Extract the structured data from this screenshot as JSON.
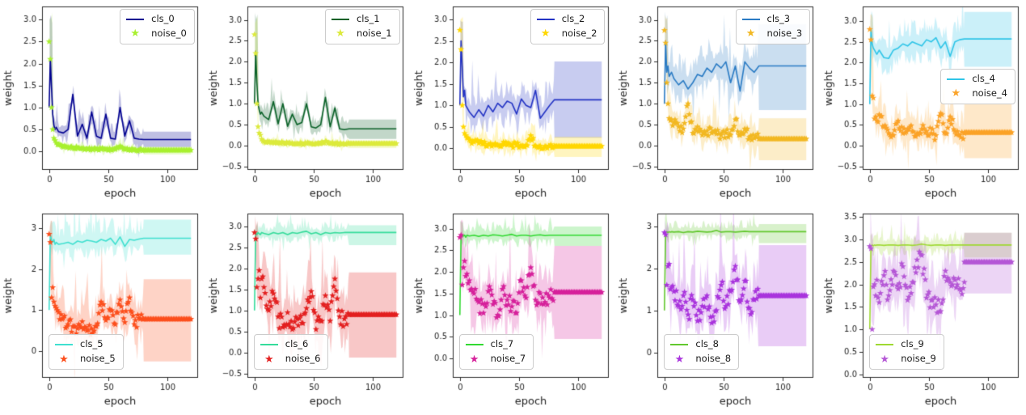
{
  "figure": {
    "background": "#ffffff",
    "grid": {
      "rows": 2,
      "cols": 5
    }
  },
  "chart_data": {
    "type": "line",
    "xlabel": "epoch",
    "ylabel": "weight",
    "xticks": [
      0,
      50,
      100
    ],
    "xlim": [
      -6,
      126
    ],
    "x_end": 120,
    "flat_from": 80,
    "grid_on": false,
    "x_anchors": [
      0,
      1,
      2,
      3,
      4,
      5,
      6,
      8,
      12,
      16,
      20,
      24,
      28,
      32,
      36,
      40,
      44,
      48,
      52,
      56,
      60,
      64,
      68,
      72,
      76,
      80
    ],
    "subplots": [
      {
        "cls_label": "cls_0",
        "noise_label": "noise_0",
        "cls_color": "#000090",
        "noise_color": "#a8f02f",
        "legend_loc": "upper-right",
        "seed": 1,
        "ylim": [
          -0.42,
          3.3
        ],
        "yticks": [
          0,
          0.5,
          1,
          1.5,
          2,
          2.5,
          3
        ],
        "ytick_decimals": 1,
        "cls_y": [
          1.0,
          2.1,
          1.45,
          0.85,
          0.6,
          0.5,
          0.55,
          0.45,
          0.42,
          0.5,
          1.3,
          0.35,
          0.62,
          0.3,
          0.9,
          0.35,
          0.3,
          0.85,
          0.3,
          0.28,
          1.0,
          0.35,
          0.7,
          0.3,
          0.28,
          0.27
        ],
        "cls_settle": 0.27,
        "noise_y": [
          2.5,
          2.1,
          1.0,
          0.5,
          0.3,
          0.25,
          0.2,
          0.15,
          0.1,
          0.1,
          0.08,
          0.08,
          0.07,
          0.06,
          0.06,
          0.05,
          0.05,
          0.05,
          0.04,
          0.05,
          0.12,
          0.05,
          0.04,
          0.04,
          0.03,
          0.03
        ],
        "noise_settle": 0.03,
        "cls_band": {
          "amp": 0.28,
          "flat": [
            0.1,
            0.45
          ]
        },
        "noise_band": {
          "amp": 0.12,
          "flat": [
            -0.07,
            0.1
          ]
        }
      },
      {
        "cls_label": "cls_1",
        "noise_label": "noise_1",
        "cls_color": "#0a6128",
        "noise_color": "#dcea3c",
        "legend_loc": "upper-right",
        "seed": 2,
        "ylim": [
          -0.58,
          3.32
        ],
        "yticks": [
          -0.5,
          0,
          0.5,
          1,
          1.5,
          2,
          2.5,
          3
        ],
        "ytick_decimals": 1,
        "cls_y": [
          1.0,
          2.25,
          1.5,
          1.0,
          0.85,
          0.75,
          0.8,
          0.7,
          0.62,
          1.05,
          0.52,
          1.0,
          0.46,
          0.75,
          0.5,
          0.55,
          1.0,
          0.45,
          0.42,
          0.5,
          1.15,
          0.45,
          0.9,
          0.4,
          0.38,
          0.4
        ],
        "cls_settle": 0.4,
        "noise_y": [
          2.65,
          2.2,
          1.0,
          0.45,
          0.3,
          0.25,
          0.15,
          0.1,
          0.08,
          0.08,
          0.07,
          0.07,
          0.06,
          0.06,
          0.05,
          0.05,
          0.05,
          0.05,
          0.05,
          0.05,
          0.1,
          0.05,
          0.05,
          0.04,
          0.04,
          0.05
        ],
        "noise_settle": 0.05,
        "cls_band": {
          "amp": 0.3,
          "flat": [
            0.16,
            0.62
          ]
        },
        "noise_band": {
          "amp": 0.12,
          "flat": [
            -0.06,
            0.12
          ]
        }
      },
      {
        "cls_label": "cls_2",
        "noise_label": "noise_2",
        "cls_color": "#2333c4",
        "noise_color": "#ffd700",
        "legend_loc": "upper-right",
        "seed": 3,
        "ylim": [
          -0.5,
          3.3
        ],
        "yticks": [
          0,
          0.5,
          1,
          1.5,
          2,
          2.5,
          3
        ],
        "ytick_decimals": 1,
        "cls_y": [
          1.0,
          2.5,
          1.9,
          1.2,
          1.35,
          1.0,
          0.95,
          0.85,
          0.72,
          0.9,
          0.75,
          1.0,
          0.85,
          1.05,
          0.95,
          1.1,
          1.05,
          0.8,
          1.15,
          1.0,
          0.95,
          1.35,
          0.7,
          0.85,
          1.0,
          1.13
        ],
        "cls_settle": 1.13,
        "noise_y": [
          2.75,
          2.3,
          1.0,
          0.5,
          0.35,
          0.3,
          0.25,
          0.2,
          0.15,
          0.12,
          0.1,
          0.1,
          0.08,
          0.08,
          0.1,
          0.08,
          0.08,
          0.07,
          0.06,
          0.08,
          0.3,
          0.06,
          0.06,
          0.05,
          0.05,
          0.05
        ],
        "noise_settle": 0.05,
        "cls_band": {
          "amp": 0.5,
          "flat": [
            0.25,
            2.02
          ]
        },
        "noise_band": {
          "amp": 0.28,
          "flat": [
            -0.2,
            0.27
          ]
        }
      },
      {
        "cls_label": "cls_3",
        "noise_label": "noise_3",
        "cls_color": "#2a7bc4",
        "noise_color": "#f2b822",
        "legend_loc": "upper-right",
        "seed": 4,
        "ylim": [
          -0.58,
          3.32
        ],
        "yticks": [
          -0.5,
          0,
          0.5,
          1,
          1.5,
          2,
          2.5,
          3
        ],
        "ytick_decimals": 1,
        "cls_y": [
          1.0,
          2.5,
          1.75,
          1.9,
          1.65,
          1.7,
          1.75,
          1.6,
          1.45,
          1.55,
          1.35,
          1.5,
          1.7,
          1.65,
          1.85,
          1.75,
          1.95,
          1.85,
          2.0,
          1.5,
          1.9,
          1.3,
          2.0,
          1.85,
          1.75,
          1.9
        ],
        "cls_settle": 1.9,
        "noise_y": [
          2.75,
          2.45,
          1.5,
          1.0,
          0.65,
          0.6,
          0.62,
          0.55,
          0.45,
          0.4,
          1.0,
          0.3,
          0.45,
          0.25,
          0.35,
          0.3,
          0.28,
          0.25,
          0.3,
          0.25,
          0.62,
          0.25,
          0.4,
          0.2,
          0.18,
          0.17
        ],
        "noise_settle": 0.16,
        "cls_band": {
          "amp": 0.6,
          "flat": [
            0.85,
            2.9
          ]
        },
        "noise_band": {
          "amp": 0.45,
          "flat": [
            -0.35,
            0.65
          ]
        }
      },
      {
        "cls_label": "cls_4",
        "noise_label": "noise_4",
        "cls_color": "#2fc5e8",
        "noise_color": "#fba328",
        "legend_loc": "center-right",
        "seed": 5,
        "ylim": [
          -0.58,
          3.35
        ],
        "yticks": [
          -0.5,
          0,
          0.5,
          1,
          1.5,
          2,
          2.5,
          3
        ],
        "ytick_decimals": 1,
        "cls_y": [
          1.0,
          2.8,
          2.45,
          2.35,
          2.3,
          2.25,
          2.2,
          2.3,
          2.12,
          2.1,
          2.3,
          2.35,
          2.45,
          2.4,
          2.5,
          2.45,
          2.4,
          2.55,
          2.5,
          2.6,
          2.35,
          2.5,
          2.15,
          2.5,
          2.55,
          2.57
        ],
        "cls_settle": 2.57,
        "noise_y": [
          2.8,
          2.55,
          1.2,
          1.15,
          0.65,
          0.7,
          0.6,
          0.75,
          0.45,
          0.3,
          0.25,
          0.6,
          0.3,
          0.4,
          0.35,
          0.3,
          0.4,
          0.35,
          0.3,
          0.25,
          0.78,
          0.3,
          0.7,
          0.35,
          0.25,
          0.3
        ],
        "noise_settle": 0.32,
        "cls_band": {
          "amp": 0.5,
          "flat": [
            1.9,
            3.22
          ]
        },
        "noise_band": {
          "amp": 0.5,
          "flat": [
            -0.3,
            1.0
          ]
        }
      },
      {
        "cls_label": "cls_5",
        "noise_label": "noise_5",
        "cls_color": "#40e0d0",
        "noise_color": "#fc4f1d",
        "legend_loc": "lower-left",
        "seed": 6,
        "ylim": [
          -0.65,
          3.35
        ],
        "yticks": [
          0,
          1,
          2,
          3
        ],
        "ytick_decimals": 0,
        "cls_y": [
          1.0,
          2.85,
          2.7,
          2.65,
          2.72,
          2.6,
          2.65,
          2.6,
          2.62,
          2.65,
          2.6,
          2.68,
          2.65,
          2.7,
          2.68,
          2.65,
          2.72,
          2.68,
          2.75,
          2.6,
          2.78,
          2.55,
          2.72,
          2.7,
          2.73,
          2.75
        ],
        "cls_settle": 2.75,
        "noise_y": [
          2.85,
          2.65,
          1.3,
          1.55,
          1.2,
          1.1,
          1.05,
          0.95,
          0.8,
          0.65,
          0.6,
          0.55,
          0.72,
          0.5,
          0.55,
          0.6,
          1.2,
          0.75,
          1.0,
          0.65,
          1.25,
          0.7,
          1.3,
          0.65,
          0.8,
          0.78
        ],
        "noise_settle": 0.78,
        "cls_band": {
          "amp": 0.45,
          "flat": [
            2.35,
            3.2
          ]
        },
        "noise_band": {
          "amp": 0.65,
          "flat": [
            -0.25,
            1.75
          ]
        }
      },
      {
        "cls_label": "cls_6",
        "noise_label": "noise_6",
        "cls_color": "#35dc9b",
        "noise_color": "#e32020",
        "legend_loc": "lower-left",
        "seed": 7,
        "ylim": [
          -0.6,
          3.3
        ],
        "yticks": [
          -0.5,
          0,
          0.5,
          1,
          1.5,
          2,
          2.5,
          3
        ],
        "ytick_decimals": 1,
        "cls_y": [
          1.0,
          2.85,
          2.8,
          2.85,
          2.82,
          2.8,
          2.85,
          2.83,
          2.8,
          2.85,
          2.82,
          2.85,
          2.8,
          2.85,
          2.83,
          2.86,
          2.88,
          2.82,
          2.85,
          2.8,
          2.85,
          2.83,
          2.85,
          2.84,
          2.85,
          2.85
        ],
        "cls_settle": 2.85,
        "noise_y": [
          2.85,
          2.7,
          1.55,
          1.75,
          1.95,
          1.3,
          1.75,
          1.55,
          1.0,
          1.4,
          0.85,
          0.6,
          0.95,
          0.55,
          0.8,
          0.7,
          1.05,
          1.45,
          0.55,
          0.75,
          1.35,
          0.75,
          1.75,
          0.85,
          0.8,
          0.9
        ],
        "noise_settle": 0.9,
        "cls_band": {
          "amp": 0.22,
          "flat": [
            2.55,
            3.02
          ]
        },
        "noise_band": {
          "amp": 0.85,
          "flat": [
            -0.12,
            1.9
          ]
        }
      },
      {
        "cls_label": "cls_7",
        "noise_label": "noise_7",
        "cls_color": "#32d932",
        "noise_color": "#d6219b",
        "legend_loc": "lower-left",
        "seed": 8,
        "ylim": [
          -0.45,
          3.35
        ],
        "yticks": [
          0,
          0.5,
          1,
          1.5,
          2,
          2.5,
          3
        ],
        "ytick_decimals": 1,
        "cls_y": [
          1.0,
          2.82,
          2.85,
          2.83,
          2.85,
          2.8,
          2.85,
          2.83,
          2.85,
          2.82,
          2.85,
          2.83,
          2.86,
          2.85,
          2.83,
          2.85,
          2.87,
          2.83,
          2.85,
          2.85,
          2.83,
          2.85,
          2.86,
          2.84,
          2.85,
          2.85
        ],
        "cls_settle": 2.85,
        "noise_y": [
          2.8,
          2.85,
          1.7,
          2.1,
          2.25,
          1.9,
          1.95,
          1.8,
          1.5,
          1.3,
          1.05,
          1.55,
          1.25,
          1.0,
          1.6,
          1.35,
          1.2,
          1.05,
          1.8,
          1.4,
          2.1,
          1.35,
          1.5,
          1.3,
          1.4,
          1.53
        ],
        "noise_settle": 1.53,
        "cls_band": {
          "amp": 0.25,
          "flat": [
            2.6,
            3.05
          ]
        },
        "noise_band": {
          "amp": 0.8,
          "flat": [
            0.45,
            2.6
          ]
        }
      },
      {
        "cls_label": "cls_8",
        "noise_label": "noise_8",
        "cls_color": "#63c82f",
        "noise_color": "#a934dd",
        "legend_loc": "lower-left",
        "seed": 9,
        "ylim": [
          -0.6,
          3.3
        ],
        "yticks": [
          0,
          1,
          2,
          3
        ],
        "ytick_decimals": 0,
        "cls_y": [
          1.0,
          2.85,
          2.87,
          2.85,
          2.87,
          2.86,
          2.87,
          2.86,
          2.87,
          2.85,
          2.87,
          2.86,
          2.88,
          2.87,
          2.86,
          2.87,
          2.9,
          2.86,
          2.87,
          2.87,
          2.86,
          2.87,
          2.88,
          2.87,
          2.87,
          2.87
        ],
        "cls_settle": 2.87,
        "noise_y": [
          2.85,
          2.8,
          1.6,
          2.05,
          2.1,
          1.5,
          1.55,
          1.45,
          1.1,
          1.35,
          0.9,
          1.25,
          0.75,
          1.1,
          1.35,
          0.7,
          1.0,
          1.6,
          1.1,
          1.45,
          2.05,
          1.2,
          1.7,
          1.05,
          1.25,
          1.35
        ],
        "noise_settle": 1.35,
        "cls_band": {
          "amp": 0.22,
          "flat": [
            2.6,
            3.05
          ]
        },
        "noise_band": {
          "amp": 0.85,
          "flat": [
            0.15,
            2.55
          ]
        }
      },
      {
        "cls_label": "cls_9",
        "noise_label": "noise_9",
        "cls_color": "#9fd932",
        "noise_color": "#b557d6",
        "legend_loc": "lower-left",
        "seed": 10,
        "ylim": [
          -0.08,
          3.58
        ],
        "yticks": [
          0,
          0.5,
          1,
          1.5,
          2,
          2.5,
          3,
          3.5
        ],
        "ytick_decimals": 1,
        "cls_y": [
          1.0,
          2.85,
          2.88,
          2.86,
          2.88,
          2.87,
          2.88,
          2.88,
          2.87,
          2.88,
          2.88,
          2.87,
          2.88,
          2.88,
          2.87,
          2.88,
          2.9,
          2.88,
          2.87,
          2.88,
          2.88,
          2.87,
          2.88,
          2.88,
          2.88,
          2.88
        ],
        "cls_settle": 2.88,
        "noise_y": [
          2.85,
          2.8,
          1.0,
          1.95,
          2.0,
          1.75,
          2.1,
          1.6,
          2.2,
          1.75,
          2.3,
          1.9,
          2.4,
          1.65,
          2.05,
          2.55,
          2.65,
          1.7,
          1.65,
          1.55,
          1.4,
          2.3,
          2.05,
          2.1,
          1.9,
          2.05
        ],
        "noise_settle": 2.5,
        "cls_band": {
          "amp": 0.22,
          "flat": [
            2.6,
            3.15
          ]
        },
        "noise_band": {
          "amp": 0.85,
          "flat": [
            1.8,
            3.15
          ]
        }
      }
    ]
  }
}
